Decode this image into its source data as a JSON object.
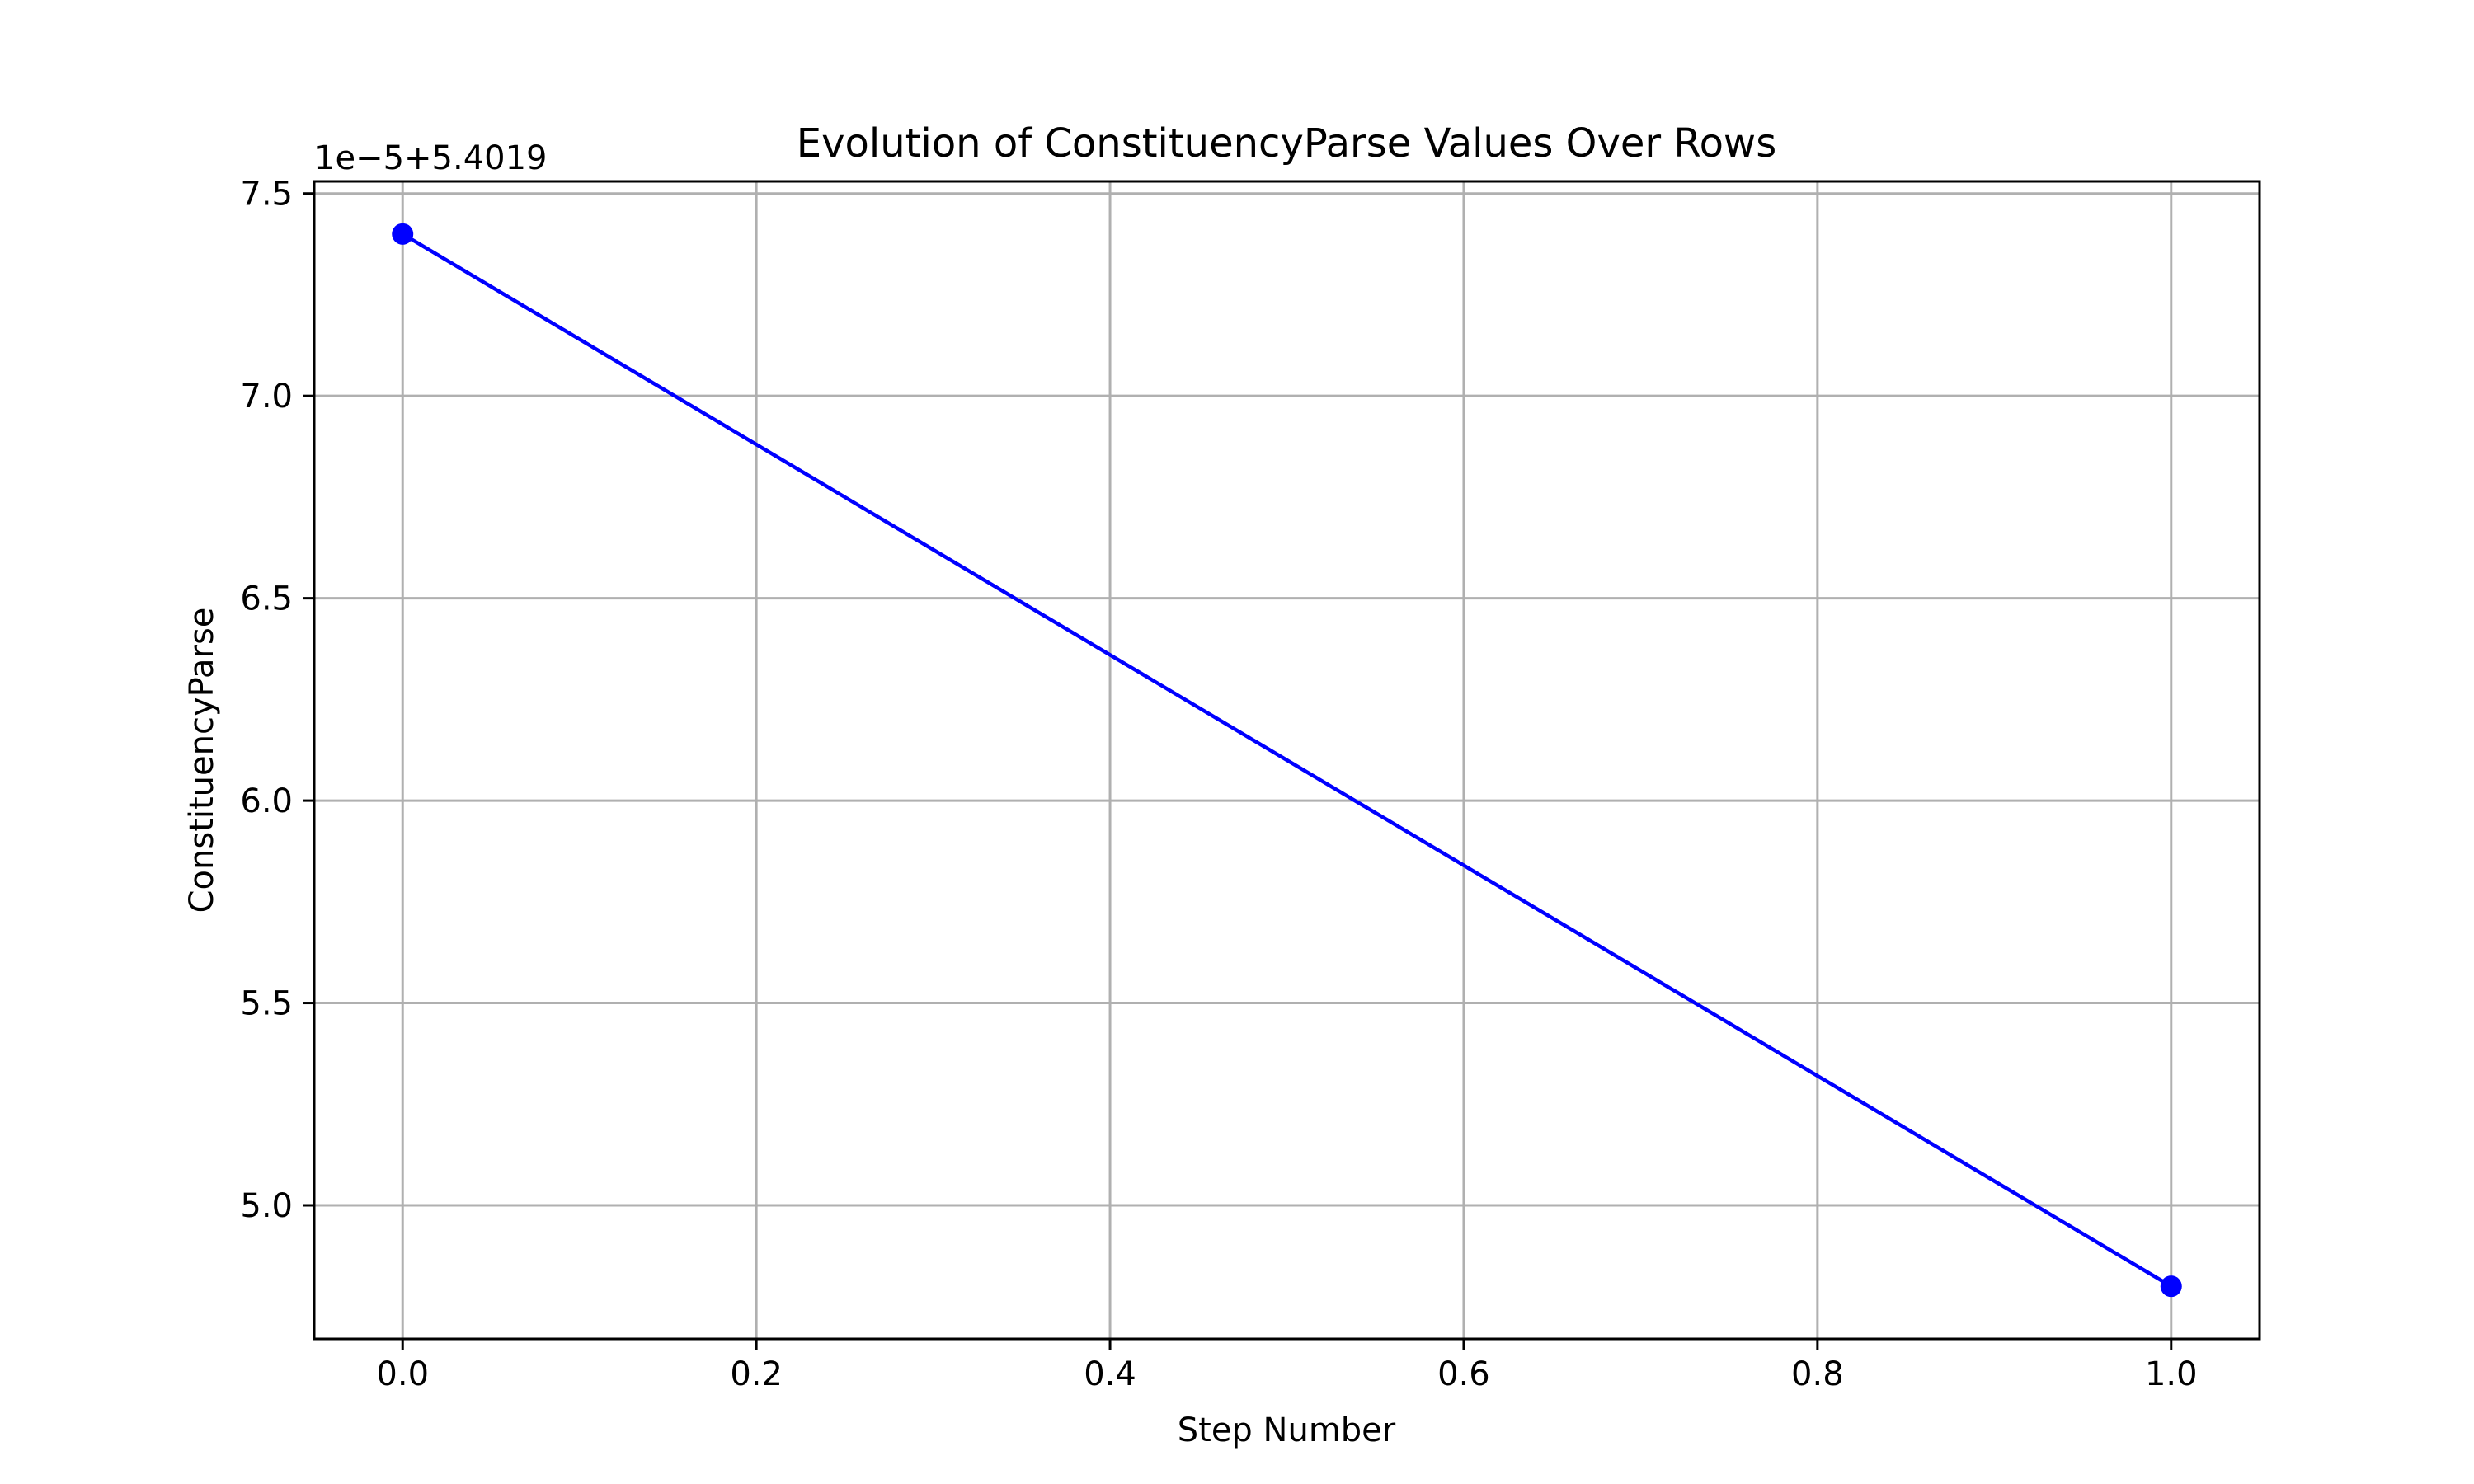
{
  "chart_data": {
    "type": "line",
    "title": "Evolution of ConstituencyParse Values Over Rows",
    "xlabel": "Step Number",
    "ylabel": "ConstituencyParse",
    "y_offset_label": "1e−5+5.4019",
    "x": [
      0.0,
      1.0
    ],
    "series": [
      {
        "values": [
          7.4,
          4.8
        ],
        "color": "#0000ff",
        "marker": "circle"
      }
    ],
    "xlim": [
      -0.05,
      1.05
    ],
    "ylim": [
      4.67,
      7.53
    ],
    "x_ticks": [
      0.0,
      0.2,
      0.4,
      0.6,
      0.8,
      1.0
    ],
    "x_tick_labels": [
      "0.0",
      "0.2",
      "0.4",
      "0.6",
      "0.8",
      "1.0"
    ],
    "y_ticks": [
      5.0,
      5.5,
      6.0,
      6.5,
      7.0,
      7.5
    ],
    "y_tick_labels": [
      "5.0",
      "5.5",
      "6.0",
      "6.5",
      "7.0",
      "7.5"
    ],
    "grid": true,
    "legend": "none"
  }
}
